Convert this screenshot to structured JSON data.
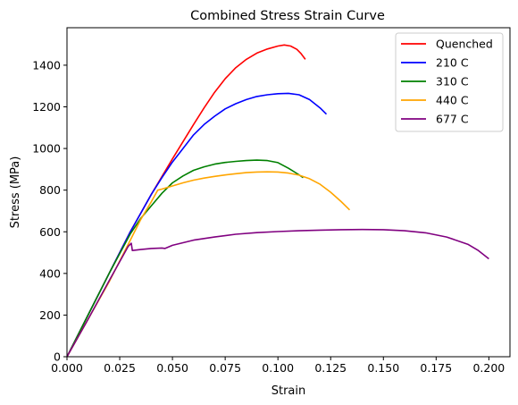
{
  "chart_data": {
    "type": "line",
    "title": "Combined Stress Strain Curve",
    "xlabel": "Strain",
    "ylabel": "Stress (MPa)",
    "xlim": [
      0,
      0.21
    ],
    "ylim": [
      0,
      1580
    ],
    "xticks": [
      0.0,
      0.025,
      0.05,
      0.075,
      0.1,
      0.125,
      0.15,
      0.175,
      0.2
    ],
    "xtick_labels": [
      "0.000",
      "0.025",
      "0.050",
      "0.075",
      "0.100",
      "0.125",
      "0.150",
      "0.175",
      "0.200"
    ],
    "yticks": [
      0,
      200,
      400,
      600,
      800,
      1000,
      1200,
      1400
    ],
    "ytick_labels": [
      "0",
      "200",
      "400",
      "600",
      "800",
      "1000",
      "1200",
      "1400"
    ],
    "grid": false,
    "legend_position": "top-right",
    "series": [
      {
        "name": "Quenched",
        "color": "#ff0000",
        "x": [
          0,
          0.01,
          0.02,
          0.03,
          0.04,
          0.05,
          0.06,
          0.065,
          0.07,
          0.075,
          0.08,
          0.085,
          0.09,
          0.095,
          0.1,
          0.103,
          0.106,
          0.109,
          0.111,
          0.113
        ],
        "y": [
          0,
          200,
          400,
          600,
          780,
          950,
          1115,
          1195,
          1270,
          1335,
          1388,
          1428,
          1458,
          1478,
          1492,
          1497,
          1492,
          1476,
          1455,
          1428
        ]
      },
      {
        "name": "210 C",
        "color": "#0000ff",
        "x": [
          0,
          0.01,
          0.02,
          0.03,
          0.04,
          0.045,
          0.05,
          0.055,
          0.06,
          0.065,
          0.07,
          0.075,
          0.08,
          0.085,
          0.09,
          0.095,
          0.1,
          0.105,
          0.11,
          0.115,
          0.12,
          0.123
        ],
        "y": [
          0,
          200,
          400,
          600,
          780,
          860,
          935,
          1000,
          1065,
          1115,
          1155,
          1190,
          1215,
          1235,
          1250,
          1258,
          1263,
          1265,
          1258,
          1235,
          1195,
          1165
        ]
      },
      {
        "name": "310 C",
        "color": "#008000",
        "x": [
          0,
          0.01,
          0.02,
          0.03,
          0.035,
          0.04,
          0.045,
          0.05,
          0.055,
          0.06,
          0.065,
          0.07,
          0.075,
          0.08,
          0.085,
          0.09,
          0.095,
          0.1,
          0.105,
          0.109,
          0.112
        ],
        "y": [
          0,
          200,
          400,
          590,
          665,
          725,
          785,
          835,
          868,
          895,
          912,
          925,
          933,
          938,
          942,
          944,
          942,
          932,
          905,
          880,
          860
        ]
      },
      {
        "name": "440 C",
        "color": "#ffa500",
        "x": [
          0,
          0.01,
          0.02,
          0.03,
          0.035,
          0.04,
          0.043,
          0.045,
          0.05,
          0.055,
          0.06,
          0.065,
          0.07,
          0.075,
          0.08,
          0.085,
          0.09,
          0.095,
          0.1,
          0.105,
          0.11,
          0.115,
          0.12,
          0.125,
          0.13,
          0.134
        ],
        "y": [
          0,
          180,
          360,
          560,
          660,
          745,
          800,
          805,
          820,
          835,
          848,
          858,
          866,
          873,
          879,
          884,
          887,
          888,
          887,
          882,
          872,
          855,
          828,
          790,
          745,
          705
        ]
      },
      {
        "name": "677 C",
        "color": "#800080",
        "x": [
          0,
          0.01,
          0.02,
          0.029,
          0.0305,
          0.031,
          0.035,
          0.04,
          0.045,
          0.0465,
          0.05,
          0.06,
          0.07,
          0.08,
          0.09,
          0.1,
          0.11,
          0.12,
          0.13,
          0.14,
          0.15,
          0.16,
          0.17,
          0.18,
          0.19,
          0.195,
          0.2
        ],
        "y": [
          0,
          180,
          365,
          530,
          545,
          510,
          515,
          520,
          522,
          520,
          535,
          560,
          575,
          588,
          596,
          601,
          605,
          608,
          610,
          611,
          610,
          605,
          595,
          575,
          540,
          510,
          470
        ]
      }
    ]
  }
}
